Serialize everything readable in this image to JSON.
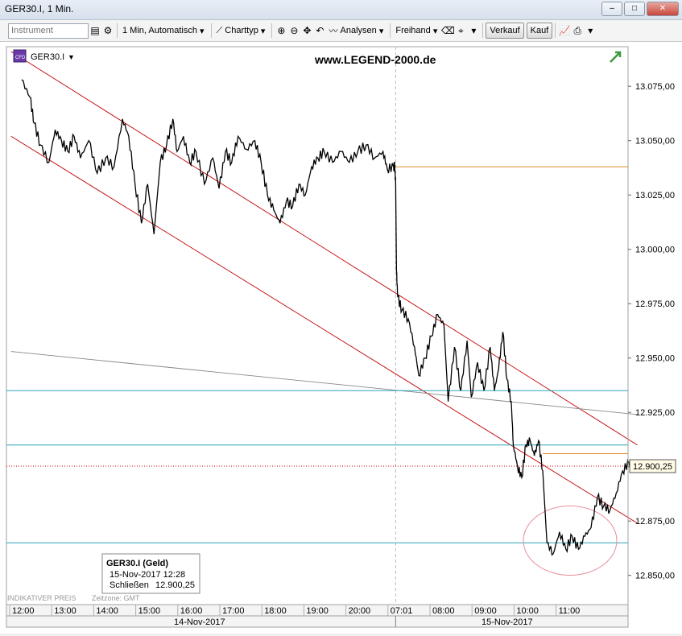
{
  "window": {
    "title": "GER30.I, 1 Min."
  },
  "toolbar": {
    "instrument_placeholder": "Instrument",
    "interval_label": "1 Min, Automatisch",
    "charttype_label": "Charttyp",
    "analysis_label": "Analysen",
    "freehand_label": "Freihand",
    "sell_label": "Verkauf",
    "buy_label": "Kauf"
  },
  "chart_header": {
    "symbol": "GER30.I",
    "watermark": "www.LEGEND-2000.de"
  },
  "tooltip": {
    "title": "GER30.I (Geld)",
    "datetime": "15-Nov-2017 12:28",
    "close_label": "Schließen",
    "close_value": "12.900,25"
  },
  "footer": {
    "indicative": "INDIKATIVER PREIS",
    "timezone": "Zeitzone: GMT"
  },
  "colors": {
    "price": "#000000",
    "channel": "#c00000",
    "horizontal": "#2aa6b8",
    "orange": "#e08a2a",
    "gray_line": "#888888",
    "circle": "#e88c9a"
  },
  "chart_data": {
    "type": "line",
    "title": "GER30.I, 1 Min.",
    "ylim": [
      12840,
      13090
    ],
    "y_ticks": [
      13075,
      13050,
      13025,
      13000,
      12975,
      12950,
      12925,
      12900,
      12875,
      12850
    ],
    "y_tick_labels": [
      "13.075,00",
      "13.050,00",
      "13.025,00",
      "13.000,00",
      "12.975,00",
      "12.950,00",
      "12.925,00",
      "12.900,00",
      "12.875,00",
      "12.850,00"
    ],
    "x_labels": [
      {
        "label": "12:00",
        "x": 0
      },
      {
        "label": "13:00",
        "x": 1
      },
      {
        "label": "14:00",
        "x": 2
      },
      {
        "label": "15:00",
        "x": 3
      },
      {
        "label": "16:00",
        "x": 4
      },
      {
        "label": "17:00",
        "x": 5
      },
      {
        "label": "18:00",
        "x": 6
      },
      {
        "label": "19:00",
        "x": 7
      },
      {
        "label": "20:00",
        "x": 8
      },
      {
        "label": "07:01",
        "x": 9
      },
      {
        "label": "08:00",
        "x": 10
      },
      {
        "label": "09:00",
        "x": 11
      },
      {
        "label": "10:00",
        "x": 12
      },
      {
        "label": "11:00",
        "x": 13
      }
    ],
    "date_labels": [
      {
        "label": "14-Nov-2017"
      },
      {
        "label": "15-Nov-2017"
      }
    ],
    "last_price": 12900.25,
    "last_price_label": "12.900,25",
    "price_series": [
      [
        -0.1,
        13078
      ],
      [
        0.1,
        13070
      ],
      [
        0.2,
        13058
      ],
      [
        0.35,
        13048
      ],
      [
        0.55,
        13040
      ],
      [
        0.7,
        13055
      ],
      [
        0.85,
        13050
      ],
      [
        1.0,
        13045
      ],
      [
        1.15,
        13052
      ],
      [
        1.3,
        13042
      ],
      [
        1.5,
        13050
      ],
      [
        1.7,
        13035
      ],
      [
        1.9,
        13042
      ],
      [
        2.1,
        13038
      ],
      [
        2.3,
        13060
      ],
      [
        2.45,
        13052
      ],
      [
        2.6,
        13030
      ],
      [
        2.75,
        13012
      ],
      [
        2.9,
        13030
      ],
      [
        3.05,
        13007
      ],
      [
        3.2,
        13040
      ],
      [
        3.35,
        13048
      ],
      [
        3.5,
        13060
      ],
      [
        3.6,
        13045
      ],
      [
        3.75,
        13052
      ],
      [
        3.9,
        13040
      ],
      [
        4.05,
        13045
      ],
      [
        4.25,
        13030
      ],
      [
        4.45,
        13042
      ],
      [
        4.6,
        13028
      ],
      [
        4.75,
        13045
      ],
      [
        4.9,
        13040
      ],
      [
        5.05,
        13052
      ],
      [
        5.25,
        13046
      ],
      [
        5.45,
        13050
      ],
      [
        5.6,
        13040
      ],
      [
        5.75,
        13025
      ],
      [
        5.9,
        13018
      ],
      [
        6.05,
        13012
      ],
      [
        6.2,
        13022
      ],
      [
        6.35,
        13020
      ],
      [
        6.5,
        13030
      ],
      [
        6.65,
        13025
      ],
      [
        6.8,
        13038
      ],
      [
        6.95,
        13042
      ],
      [
        7.1,
        13045
      ],
      [
        7.3,
        13040
      ],
      [
        7.5,
        13045
      ],
      [
        7.7,
        13040
      ],
      [
        7.9,
        13045
      ],
      [
        8.1,
        13048
      ],
      [
        8.3,
        13042
      ],
      [
        8.5,
        13045
      ],
      [
        8.6,
        13037
      ],
      [
        8.75,
        13038
      ],
      [
        8.78,
        13038
      ],
      [
        8.8,
        13030
      ],
      [
        8.82,
        12990
      ],
      [
        8.85,
        12978
      ],
      [
        8.95,
        12972
      ],
      [
        9.1,
        12968
      ],
      [
        9.25,
        12955
      ],
      [
        9.35,
        12942
      ],
      [
        9.5,
        12950
      ],
      [
        9.65,
        12960
      ],
      [
        9.8,
        12970
      ],
      [
        9.95,
        12965
      ],
      [
        10.05,
        12930
      ],
      [
        10.2,
        12955
      ],
      [
        10.35,
        12935
      ],
      [
        10.5,
        12958
      ],
      [
        10.6,
        12932
      ],
      [
        10.75,
        12948
      ],
      [
        10.9,
        12935
      ],
      [
        11.05,
        12955
      ],
      [
        11.15,
        12935
      ],
      [
        11.25,
        12945
      ],
      [
        11.35,
        12962
      ],
      [
        11.45,
        12940
      ],
      [
        11.55,
        12930
      ],
      [
        11.6,
        12910
      ],
      [
        11.7,
        12900
      ],
      [
        11.8,
        12895
      ],
      [
        11.9,
        12910
      ],
      [
        12.0,
        12912
      ],
      [
        12.1,
        12905
      ],
      [
        12.2,
        12912
      ],
      [
        12.3,
        12898
      ],
      [
        12.4,
        12865
      ],
      [
        12.55,
        12860
      ],
      [
        12.7,
        12870
      ],
      [
        12.85,
        12862
      ],
      [
        13.0,
        12868
      ],
      [
        13.15,
        12862
      ],
      [
        13.3,
        12868
      ],
      [
        13.45,
        12872
      ],
      [
        13.6,
        12886
      ],
      [
        13.75,
        12882
      ],
      [
        13.9,
        12880
      ],
      [
        14.05,
        12888
      ],
      [
        14.2,
        12898
      ],
      [
        14.35,
        12902
      ],
      [
        14.45,
        12900
      ]
    ],
    "channel_upper": {
      "x": [
        -0.35,
        14.55
      ],
      "y": [
        13091,
        12910
      ]
    },
    "channel_lower": {
      "x": [
        -0.35,
        14.55
      ],
      "y": [
        13052,
        12874
      ]
    },
    "gray_trendline": {
      "x": [
        -0.35,
        14.55
      ],
      "y": [
        12953,
        12924
      ]
    },
    "horizontal_levels": [
      12935,
      12910,
      12865
    ],
    "orange_levels": [
      {
        "x_start": 8.8,
        "y": 13038
      },
      {
        "x_start": 12.3,
        "y": 12906
      }
    ]
  }
}
